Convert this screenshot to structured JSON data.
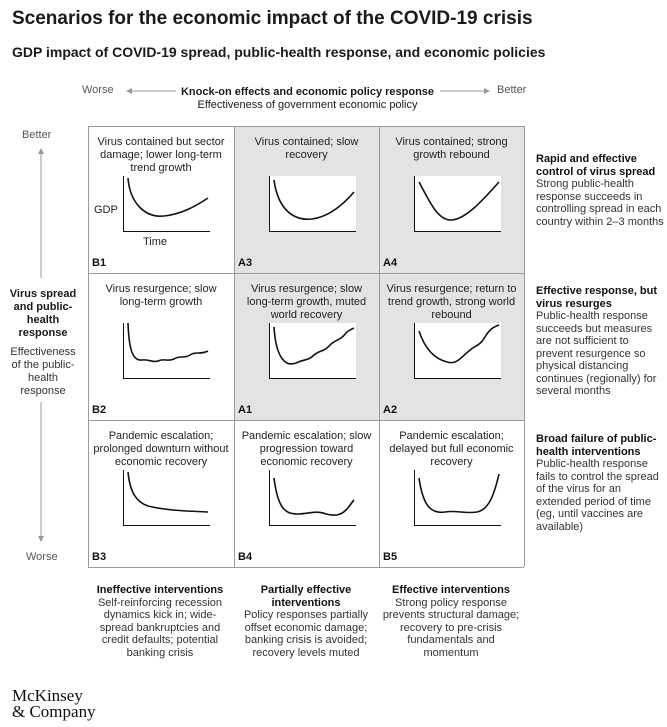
{
  "title": "Scenarios for the economic impact of the COVID-19 crisis",
  "subtitle": "GDP impact of COVID-19 spread, public-health response, and economic policies",
  "horizontal_axis": {
    "worse": "Worse",
    "better": "Better",
    "title": "Knock-on effects and economic policy response",
    "subtitle": "Effectiveness of government economic policy"
  },
  "vertical_axis": {
    "better": "Better",
    "worse": "Worse",
    "title": "Virus spread and public-health response",
    "subtitle": "Effectiveness of the public-health response"
  },
  "chart_labels": {
    "y": "GDP",
    "x": "Time"
  },
  "cells": [
    {
      "code": "B1",
      "text": "Virus contained but sector damage; lower long-term trend growth",
      "shaded": false,
      "curve": "b1"
    },
    {
      "code": "A3",
      "text": "Virus contained; slow recovery",
      "shaded": true,
      "curve": "a3"
    },
    {
      "code": "A4",
      "text": "Virus contained; strong growth rebound",
      "shaded": true,
      "curve": "a4"
    },
    {
      "code": "B2",
      "text": "Virus resurgence; slow long-term growth",
      "shaded": false,
      "curve": "b2"
    },
    {
      "code": "A1",
      "text": "Virus resurgence; slow long-term growth, muted world recovery",
      "shaded": true,
      "curve": "a1"
    },
    {
      "code": "A2",
      "text": "Virus resurgence; return to trend growth, strong world rebound",
      "shaded": true,
      "curve": "a2"
    },
    {
      "code": "B3",
      "text": "Pandemic escalation; prolonged downturn without economic recovery",
      "shaded": false,
      "curve": "b3"
    },
    {
      "code": "B4",
      "text": "Pandemic escalation; slow progression toward economic recovery",
      "shaded": false,
      "curve": "b4"
    },
    {
      "code": "B5",
      "text": "Pandemic escalation; delayed but full economic recovery",
      "shaded": false,
      "curve": "b5"
    }
  ],
  "row_descriptions": [
    {
      "title": "Rapid and effective control of virus spread",
      "text": "Strong public-health response succeeds in controlling spread in each country within 2–3 months"
    },
    {
      "title": "Effective response, but virus resurges",
      "text": "Public-health response succeeds but measures are not sufficient to prevent resurgence so physical distancing continues (regionally) for several months"
    },
    {
      "title": "Broad failure of public-health interventions",
      "text": "Public-health response fails to control the spread of the virus for an extended period of time (eg, until vaccines are available)"
    }
  ],
  "column_descriptions": [
    {
      "title": "Ineffective interventions",
      "text": "Self-reinforcing recession dynamics kick in; wide-spread bankruptcies and credit defaults; potential banking crisis"
    },
    {
      "title": "Partially effective interventions",
      "text": "Policy responses partially offset economic damage; banking crisis is avoided; recovery levels muted"
    },
    {
      "title": "Effective interventions",
      "text": "Strong policy response prevents structural damage; recovery to pre-crisis fundamentals and momentum"
    }
  ],
  "logo": {
    "line1": "McKinsey",
    "line2": "& Company"
  }
}
